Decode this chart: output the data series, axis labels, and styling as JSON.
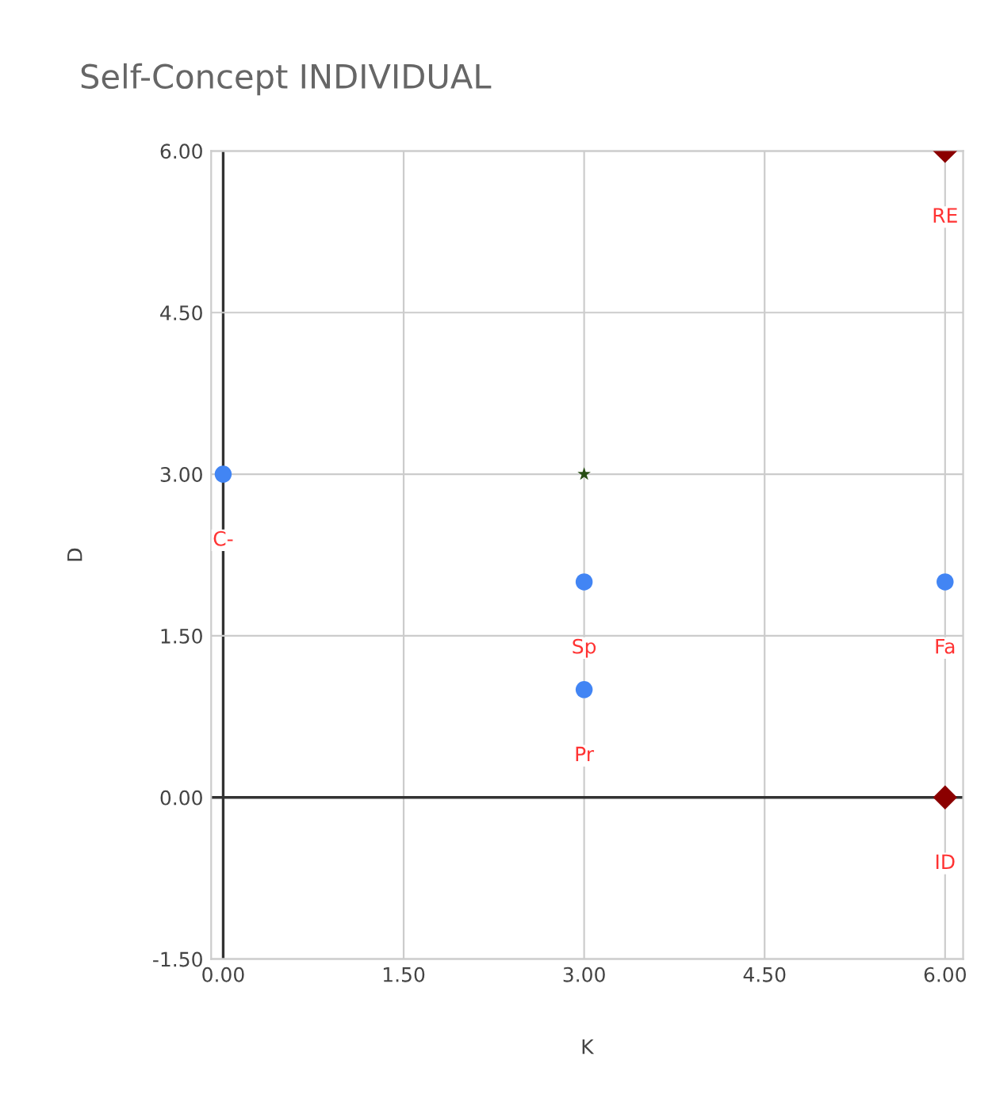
{
  "chart_data": {
    "type": "scatter",
    "title": "Self-Concept INDIVIDUAL",
    "xlabel": "K",
    "ylabel": "D",
    "series": [
      {
        "color": "#4285f4",
        "marker": "circle",
        "x": [
          0,
          3,
          3,
          6
        ],
        "values": [
          3,
          2,
          1,
          2
        ]
      },
      {
        "color": "#8b0000",
        "marker": "diamond",
        "x": [
          6,
          6
        ],
        "values": [
          6,
          0
        ]
      },
      {
        "color": "#274e13",
        "marker": "star",
        "x": [
          3
        ],
        "values": [
          3
        ]
      }
    ],
    "annotations": [
      {
        "text": "C-",
        "x": 0,
        "y": 3
      },
      {
        "text": "Sp",
        "x": 3,
        "y": 2
      },
      {
        "text": "Pr",
        "x": 3,
        "y": 1
      },
      {
        "text": "Fa",
        "x": 6,
        "y": 2
      },
      {
        "text": "RE",
        "x": 6,
        "y": 6
      },
      {
        "text": "ID",
        "x": 6,
        "y": 0
      }
    ],
    "xlim": [
      -0.1,
      6.15
    ],
    "ylim": [
      -1.5,
      6
    ],
    "xticks": [
      {
        "value": 0,
        "label": "0.00"
      },
      {
        "value": 1.5,
        "label": "1.50"
      },
      {
        "value": 3,
        "label": "3.00"
      },
      {
        "value": 4.5,
        "label": "4.50"
      },
      {
        "value": 6,
        "label": "6.00"
      }
    ],
    "yticks": [
      {
        "value": -1.5,
        "label": "-1.50"
      },
      {
        "value": 0,
        "label": "0.00"
      },
      {
        "value": 1.5,
        "label": "1.50"
      },
      {
        "value": 3,
        "label": "3.00"
      },
      {
        "value": 4.5,
        "label": "4.50"
      },
      {
        "value": 6,
        "label": "6.00"
      }
    ],
    "grid": true,
    "legend": false
  }
}
